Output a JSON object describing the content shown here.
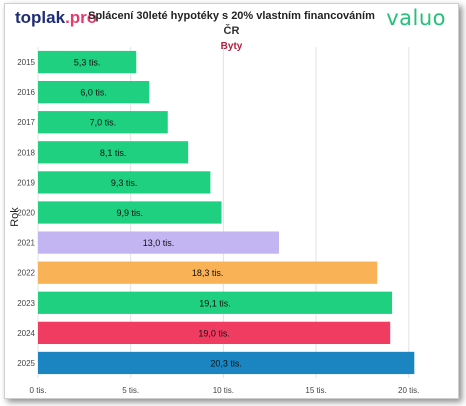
{
  "logo_left": {
    "part1": "toplak",
    "part2": ".pro"
  },
  "logo_right": "valuo",
  "chart_data": {
    "type": "bar",
    "orientation": "horizontal",
    "title": "Splácení 30leté hypotéky s 20% vlastním financováním",
    "subtitle": "ČR",
    "segment": "Byty",
    "ylabel": "Rok",
    "xlabel": "",
    "xlim": [
      0,
      20.5
    ],
    "xticks": [
      0,
      5,
      10,
      15,
      20
    ],
    "xtick_labels": [
      "0 tis.",
      "5 tis.",
      "10 tis.",
      "15 tis.",
      "20 tis."
    ],
    "grid": "vertical",
    "categories": [
      "2015",
      "2016",
      "2017",
      "2018",
      "2019",
      "2020",
      "2021",
      "2022",
      "2023",
      "2024",
      "2025"
    ],
    "values": [
      5.3,
      6.0,
      7.0,
      8.1,
      9.3,
      9.9,
      13.0,
      18.3,
      19.1,
      19.0,
      20.3
    ],
    "labels": [
      "5,3 tis.",
      "6,0 tis.",
      "7,0 tis.",
      "8,1 tis.",
      "9,3 tis.",
      "9,9 tis.",
      "13,0 tis.",
      "18,3 tis.",
      "19,1 tis.",
      "19,0 tis.",
      "20,3 tis."
    ],
    "colors": [
      "#1ed07f",
      "#1ed07f",
      "#1ed07f",
      "#1ed07f",
      "#1ed07f",
      "#1ed07f",
      "#c3b5f2",
      "#f9b256",
      "#1ed07f",
      "#f03c61",
      "#1a85c1"
    ]
  }
}
